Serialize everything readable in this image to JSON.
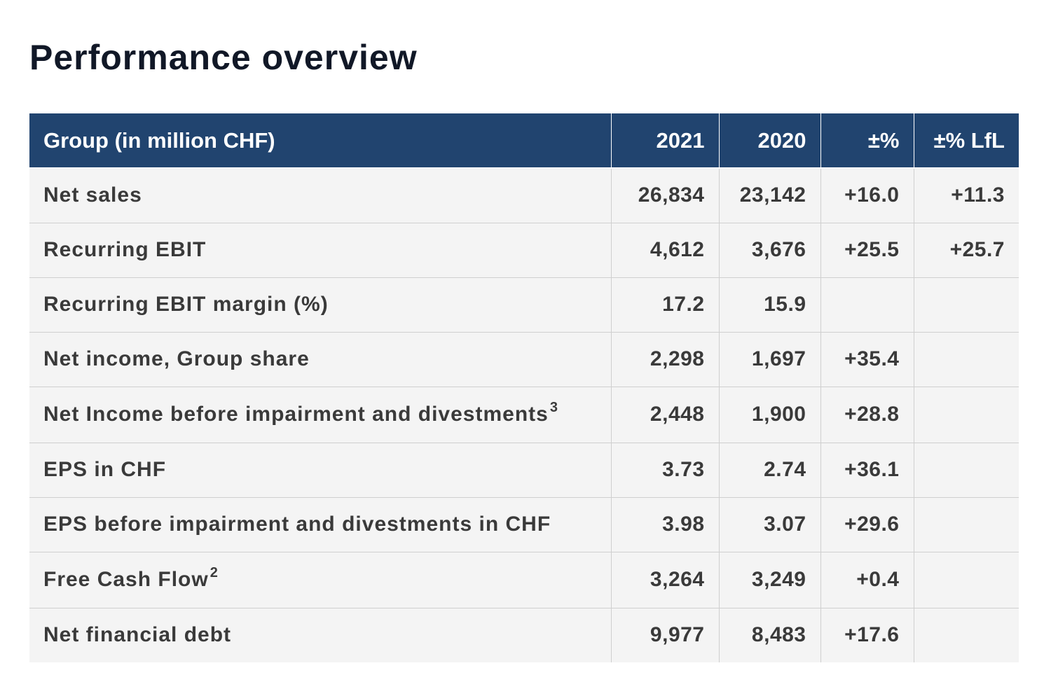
{
  "page": {
    "title": "Performance overview"
  },
  "table": {
    "headers": [
      "Group (in million CHF)",
      "2021",
      "2020",
      "±%",
      "±% LfL"
    ],
    "rows": [
      {
        "label": "Net sales",
        "footnote": "",
        "v2021": "26,834",
        "v2020": "23,142",
        "change": "+16.0",
        "lfl": "+11.3"
      },
      {
        "label": "Recurring EBIT",
        "footnote": "",
        "v2021": "4,612",
        "v2020": "3,676",
        "change": "+25.5",
        "lfl": "+25.7"
      },
      {
        "label": "Recurring EBIT margin (%)",
        "footnote": "",
        "v2021": "17.2",
        "v2020": "15.9",
        "change": "",
        "lfl": ""
      },
      {
        "label": "Net income, Group share",
        "footnote": "",
        "v2021": "2,298",
        "v2020": "1,697",
        "change": "+35.4",
        "lfl": ""
      },
      {
        "label": "Net Income before impairment and divestments",
        "footnote": "3",
        "v2021": "2,448",
        "v2020": "1,900",
        "change": "+28.8",
        "lfl": ""
      },
      {
        "label": "EPS in CHF",
        "footnote": "",
        "v2021": "3.73",
        "v2020": "2.74",
        "change": "+36.1",
        "lfl": ""
      },
      {
        "label": "EPS before impairment and divestments in CHF",
        "footnote": "",
        "v2021": "3.98",
        "v2020": "3.07",
        "change": "+29.6",
        "lfl": ""
      },
      {
        "label": "Free Cash Flow",
        "footnote": "2",
        "v2021": "3,264",
        "v2020": "3,249",
        "change": "+0.4",
        "lfl": ""
      },
      {
        "label": "Net financial debt",
        "footnote": "",
        "v2021": "9,977",
        "v2020": "8,483",
        "change": "+17.6",
        "lfl": ""
      }
    ]
  }
}
